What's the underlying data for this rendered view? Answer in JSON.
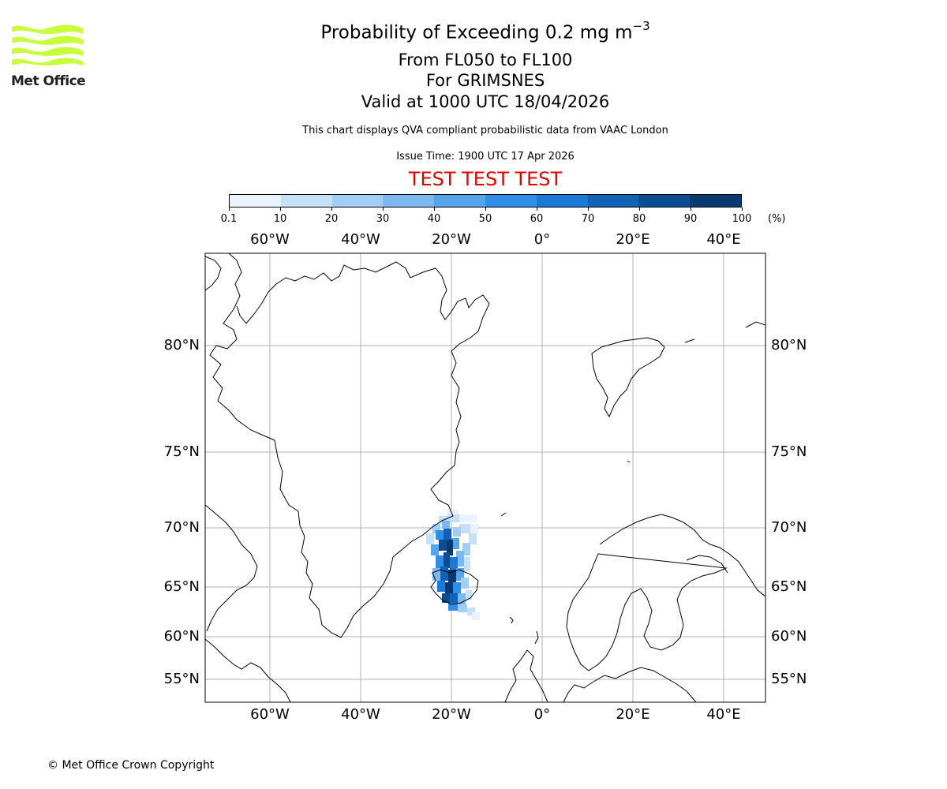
{
  "logo": {
    "text": "Met Office",
    "color": "#c8ff3c"
  },
  "title": {
    "main": "Probability of Exceeding 0.2 mg m",
    "main_exponent": "−3",
    "levels": "From FL050 to FL100",
    "volcano": "For GRIMSNES",
    "valid": "Valid at 1000 UTC 18/04/2026",
    "source": "This chart displays QVA compliant probabilistic data from VAAC London",
    "issue": "Issue Time: 1900 UTC 17 Apr 2026",
    "test_banner": "TEST TEST TEST"
  },
  "colorbar": {
    "ticks": [
      "0.1",
      "10",
      "20",
      "30",
      "40",
      "50",
      "60",
      "70",
      "80",
      "90",
      "100"
    ],
    "unit": "(%)",
    "colors": [
      "#eaf3fd",
      "#c6e0f8",
      "#a2cdf5",
      "#7cb9f1",
      "#55a5ee",
      "#2e8fe8",
      "#1a78d6",
      "#0f62b6",
      "#0a4d93",
      "#063a70",
      "#032a52"
    ]
  },
  "map": {
    "lon_labels": [
      "60°W",
      "40°W",
      "20°W",
      "0°",
      "20°E",
      "40°E"
    ],
    "lat_labels": [
      "80°N",
      "75°N",
      "70°N",
      "65°N",
      "60°N",
      "55°N"
    ],
    "grid_color": "#b0b0b0",
    "plume_probability_max": 100
  },
  "copyright": "© Met Office Crown Copyright"
}
